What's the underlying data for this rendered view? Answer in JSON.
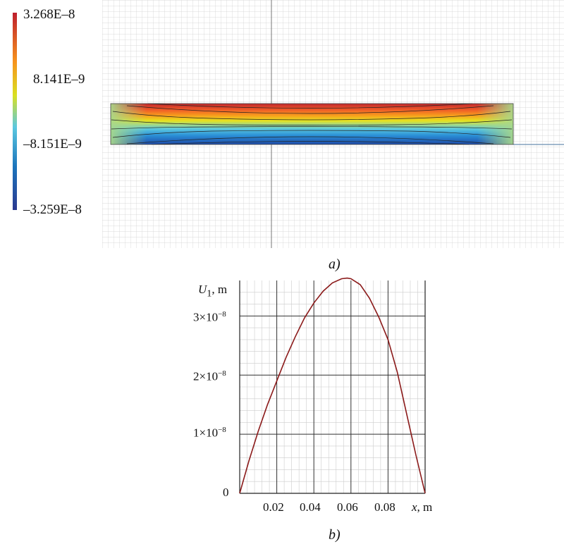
{
  "panel_a": {
    "label": "a)",
    "colorbar": {
      "ticks": [
        "3.268E–8",
        "8.141E–9",
        "–8.151E–9",
        "–3.259E–8"
      ],
      "values": [
        3.268e-08,
        8.141e-09,
        -8.151e-09,
        -3.259e-08
      ],
      "colors": [
        "#c1272d",
        "#e0d020",
        "#5bc8e0",
        "#2b3990"
      ]
    }
  },
  "panel_b": {
    "label": "b)",
    "y_axis_title": {
      "symbol": "U",
      "subscript": "1",
      "unit": ", m"
    },
    "x_axis_title": {
      "symbol": "x",
      "unit": ", m"
    },
    "y_tick_labels": [
      {
        "mant": "0",
        "exp": ""
      },
      {
        "mant": "1×10",
        "exp": "−8"
      },
      {
        "mant": "2×10",
        "exp": "−8"
      },
      {
        "mant": "3×10",
        "exp": "−8"
      }
    ],
    "x_tick_labels": [
      "0.02",
      "0.04",
      "0.06",
      "0.08"
    ]
  },
  "chart_data": [
    {
      "type": "heatmap",
      "title": "",
      "colorbar_range": [
        -3.259e-08,
        3.268e-08
      ],
      "colorbar_ticks": [
        3.268e-08,
        8.141e-09,
        -8.151e-09,
        -3.259e-08
      ],
      "colormap": [
        "#2b3990",
        "#5bc8e0",
        "#e0d020",
        "#c1272d"
      ],
      "grid": true
    },
    {
      "type": "line",
      "title": "",
      "xlabel": "x, m",
      "ylabel": "U1, m",
      "xlim": [
        0,
        0.1
      ],
      "ylim": [
        0,
        3.6e-08
      ],
      "grid": true,
      "x_ticks": [
        0.02,
        0.04,
        0.06,
        0.08
      ],
      "y_ticks": [
        0,
        1e-08,
        2e-08,
        3e-08
      ],
      "line_color": "#8b1a1a",
      "series": [
        {
          "x": [
            0,
            0.005,
            0.01,
            0.015,
            0.02,
            0.025,
            0.03,
            0.035,
            0.04,
            0.045,
            0.05,
            0.055,
            0.058,
            0.06,
            0.065,
            0.07,
            0.075,
            0.08,
            0.085,
            0.09,
            0.095,
            0.1
          ],
          "values": [
            0,
            5.5e-09,
            1.05e-08,
            1.5e-08,
            1.9e-08,
            2.3e-08,
            2.65e-08,
            2.97e-08,
            3.22e-08,
            3.42e-08,
            3.56e-08,
            3.63e-08,
            3.64e-08,
            3.63e-08,
            3.53e-08,
            3.3e-08,
            2.98e-08,
            2.6e-08,
            2.05e-08,
            1.35e-08,
            6.5e-09,
            0
          ]
        }
      ]
    }
  ]
}
